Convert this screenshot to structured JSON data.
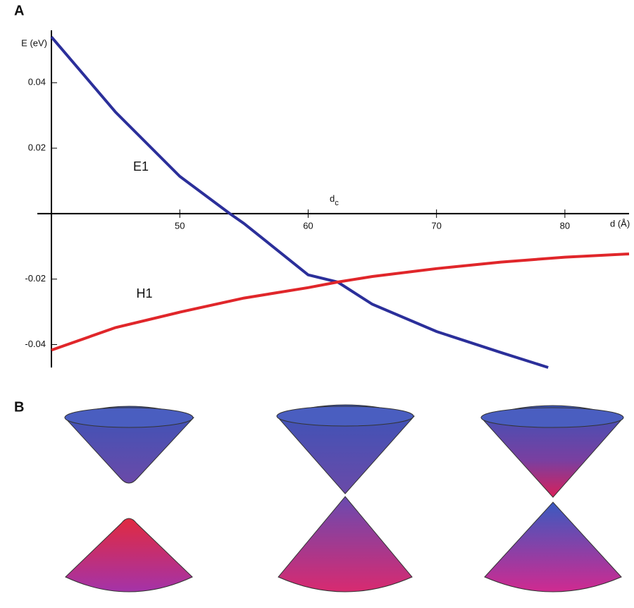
{
  "panel_labels": [
    "A",
    "B"
  ],
  "chart_data": {
    "type": "line",
    "y_label": "E (eV)",
    "x_label": "d (Å)",
    "annotations": [
      {
        "text": "E1"
      },
      {
        "text": "H1"
      },
      {
        "text": "d",
        "sub": "c"
      }
    ],
    "xlim": [
      40,
      85
    ],
    "ylim": [
      -0.047,
      0.056
    ],
    "xticks": [
      50,
      60,
      70,
      80
    ],
    "yticks": [
      -0.04,
      -0.02,
      0.02,
      0.04
    ],
    "series": [
      {
        "name": "E1",
        "color": "#2b2f9a",
        "x": [
          40,
          45,
          50,
          53.9,
          55,
          60,
          62.3,
          65,
          70,
          75,
          78.7
        ],
        "values": [
          0.054,
          0.031,
          0.0114,
          0,
          -0.003,
          -0.0187,
          -0.0209,
          -0.0277,
          -0.036,
          -0.0424,
          -0.047
        ]
      },
      {
        "name": "H1",
        "color": "#e0262a",
        "x": [
          40,
          45,
          50,
          55,
          60,
          62.3,
          65,
          70,
          75,
          80,
          85
        ],
        "values": [
          -0.0417,
          -0.0348,
          -0.0301,
          -0.0258,
          -0.0226,
          -0.0209,
          -0.0192,
          -0.0168,
          -0.0148,
          -0.0133,
          -0.0123
        ]
      }
    ]
  }
}
